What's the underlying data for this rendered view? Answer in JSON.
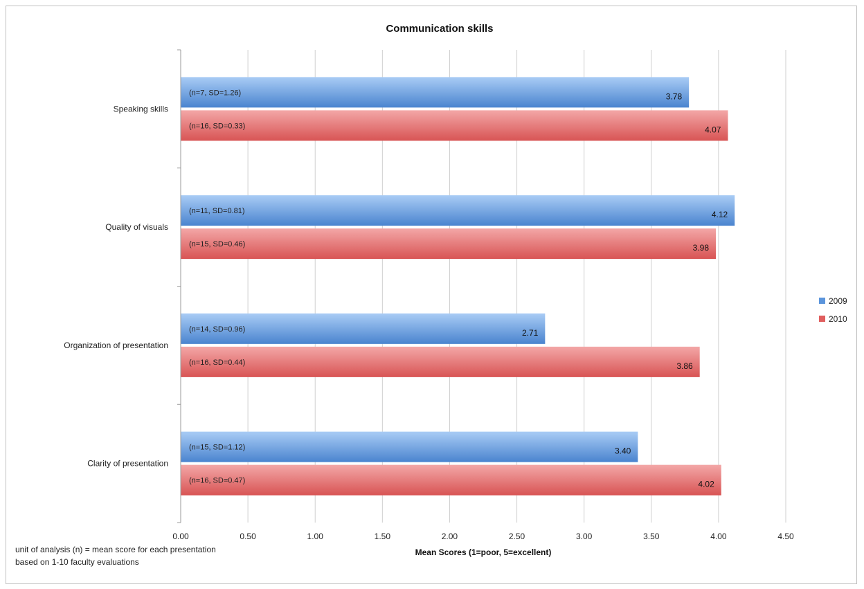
{
  "chart_data": {
    "type": "bar",
    "orientation": "horizontal",
    "title": "Communication skills",
    "xlabel": "Mean Scores (1=poor, 5=excellent)",
    "ylabel": "",
    "xlim": [
      0,
      4.5
    ],
    "x_ticks": [
      "0.00",
      "0.50",
      "1.00",
      "1.50",
      "2.00",
      "2.50",
      "3.00",
      "3.50",
      "4.00",
      "4.50"
    ],
    "grid": "vertical",
    "legend_position": "right",
    "categories": [
      "Speaking skills",
      "Quality of visuals",
      "Organization of presentation",
      "Clarity of presentation"
    ],
    "series": [
      {
        "name": "2009",
        "color": "#5b95dc",
        "values": [
          3.78,
          4.12,
          2.71,
          3.4
        ],
        "value_labels": [
          "3.78",
          "4.12",
          "2.71",
          "3.40"
        ],
        "annotations": [
          "(n=7, SD=1.26)",
          "(n=11, SD=0.81)",
          "(n=14, SD=0.96)",
          "(n=15, SD=1.12)"
        ]
      },
      {
        "name": "2010",
        "color": "#e05e5e",
        "values": [
          4.07,
          3.98,
          3.86,
          4.02
        ],
        "value_labels": [
          "4.07",
          "3.98",
          "3.86",
          "4.02"
        ],
        "annotations": [
          "(n=16, SD=0.33)",
          "(n=15, SD=0.46)",
          "(n=16, SD=0.44)",
          "(n=16, SD=0.47)"
        ]
      }
    ]
  },
  "footnote": {
    "line1": "unit of analysis (n) = mean score for each presentation",
    "line2": "based on 1-10 faculty evaluations"
  }
}
